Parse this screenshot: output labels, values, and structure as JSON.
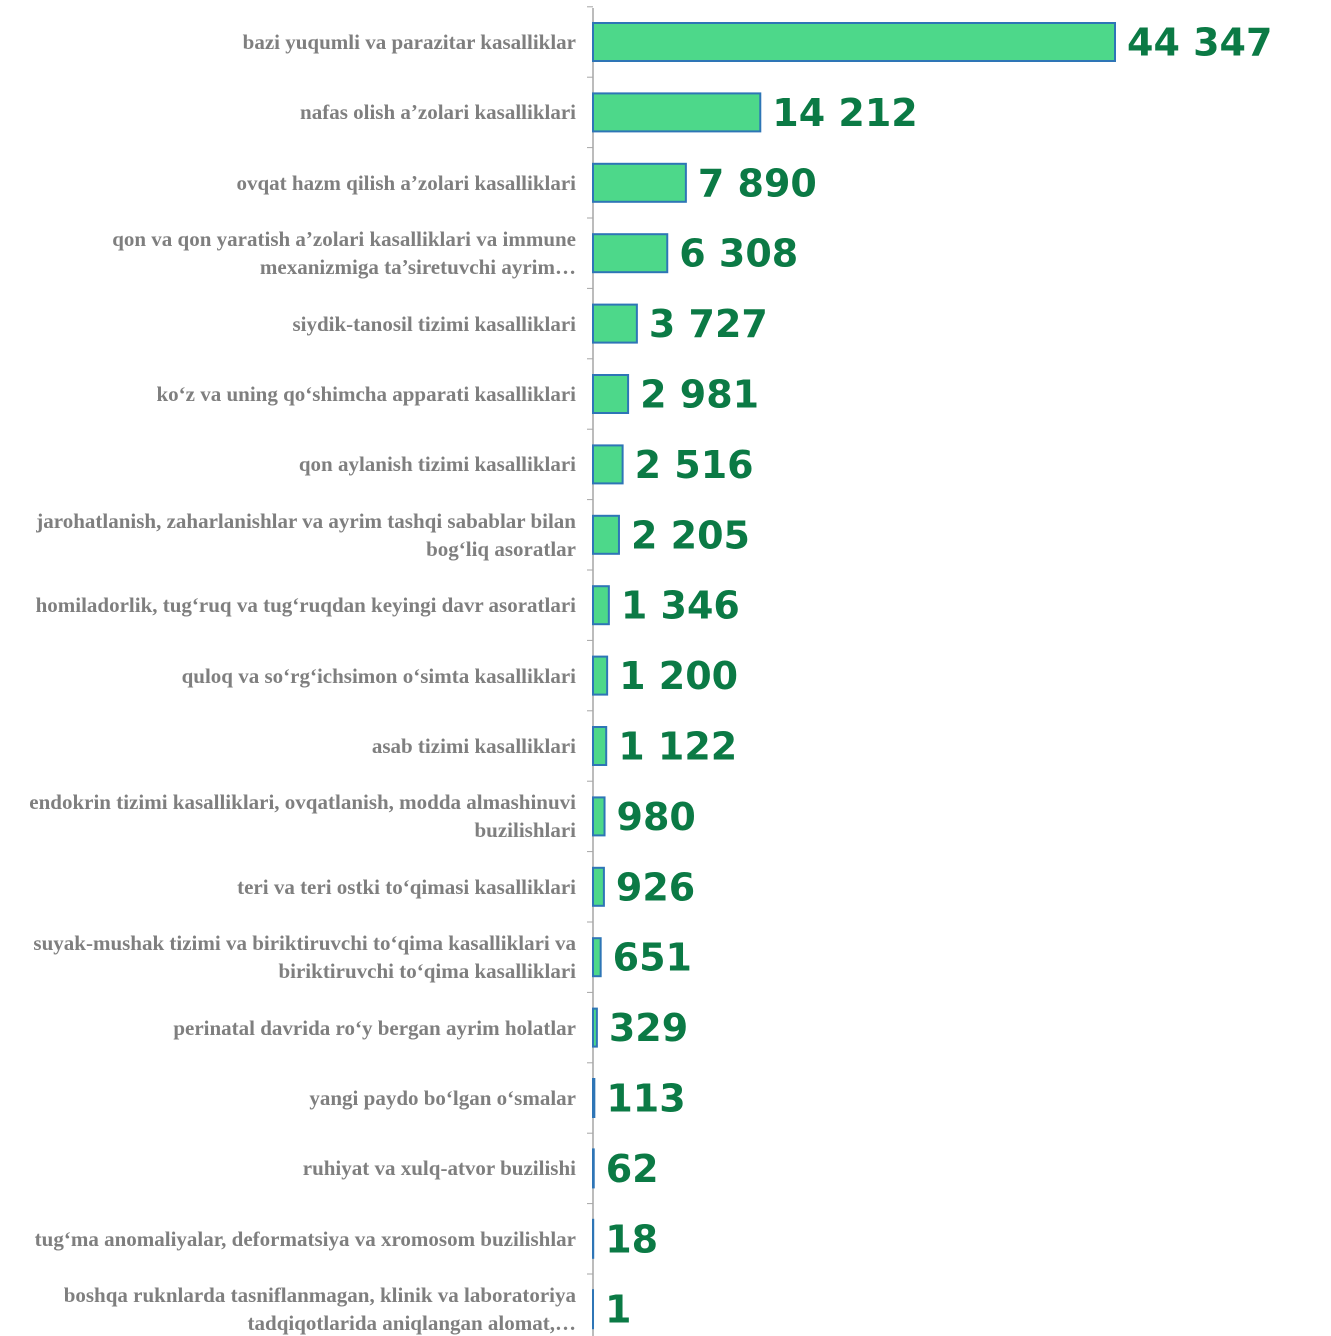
{
  "chart_data": {
    "type": "barh",
    "categories": [
      "bazi yuqumli va parazitar kasalliklar",
      "nafas olish a’zolari kasalliklari",
      "ovqat hazm qilish a’zolari kasalliklari",
      "qon va qon yaratish a’zolari kasalliklari va immune mexanizmiga ta’siretuvchi ayrim…",
      "siydik-tanosil tizimi kasalliklari",
      "ko‘z va uning qo‘shimcha apparati kasalliklari",
      "qon aylanish tizimi kasalliklari",
      "jarohatlanish, zaharlanishlar va ayrim tashqi sabablar bilan bog‘liq asoratlar",
      "homiladorlik, tug‘ruq va tug‘ruqdan keyingi davr asoratlari",
      "quloq va so‘rg‘ichsimon o‘simta kasalliklari",
      "asab tizimi kasalliklari",
      "endokrin tizimi kasalliklari, ovqatlanish, modda almashinuvi buzilishlari",
      "teri va teri ostki to‘qimasi  kasalliklari",
      "suyak-mushak tizimi va biriktiruvchi to‘qima kasalliklari va biriktiruvchi to‘qima kasalliklari",
      "perinatal davrida ro‘y bergan ayrim holatlar",
      "yangi paydo bo‘lgan o‘smalar",
      "ruhiyat va xulq-atvor buzilishi",
      "tug‘ma anomaliyalar, deformatsiya va xromosom buzilishlar",
      "boshqa ruknlarda tasniflanmagan, klinik va laboratoriya tadqiqotlarida aniqlangan alomat,…"
    ],
    "values": [
      44347,
      14212,
      7890,
      6308,
      3727,
      2981,
      2516,
      2205,
      1346,
      1200,
      1122,
      980,
      926,
      651,
      329,
      113,
      62,
      18,
      1
    ],
    "value_labels": [
      "44 347",
      "14 212",
      "7 890",
      "6 308",
      "3 727",
      "2 981",
      "2 516",
      "2 205",
      "1 346",
      "1 200",
      "1 122",
      "980",
      "926",
      "651",
      "329",
      "113",
      "62",
      "18",
      "1"
    ],
    "color": "#4dd88a",
    "edge_color": "#2e75b6"
  }
}
